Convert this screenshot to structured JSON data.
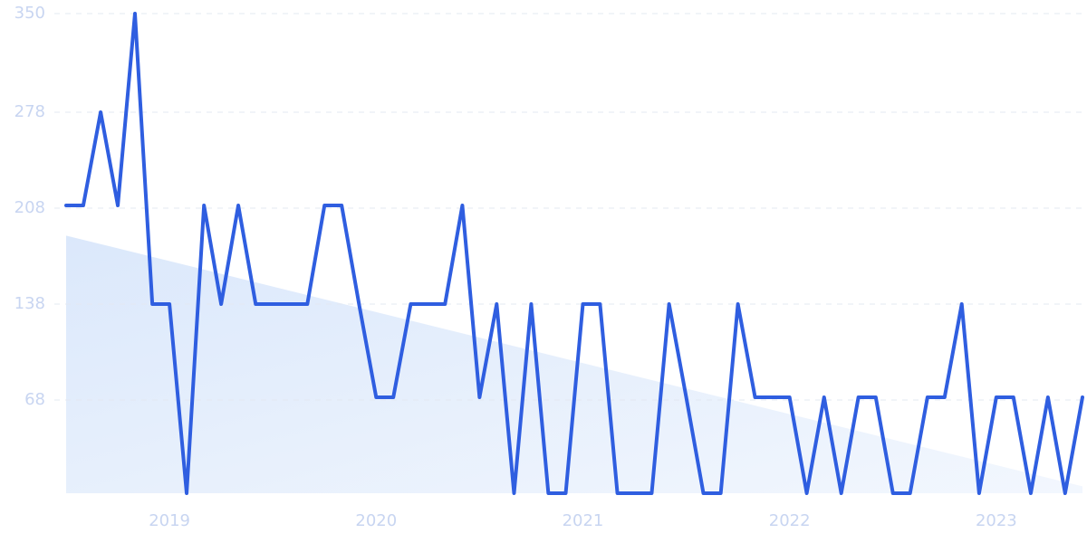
{
  "chart_data": {
    "type": "line",
    "x": [
      2018.5,
      2018.583,
      2018.667,
      2018.75,
      2018.833,
      2018.917,
      2019,
      2019.083,
      2019.167,
      2019.25,
      2019.333,
      2019.417,
      2019.5,
      2019.583,
      2019.667,
      2019.75,
      2019.833,
      2019.917,
      2020,
      2020.083,
      2020.167,
      2020.25,
      2020.333,
      2020.417,
      2020.5,
      2020.583,
      2020.667,
      2020.75,
      2020.833,
      2020.917,
      2021,
      2021.083,
      2021.167,
      2021.25,
      2021.333,
      2021.417,
      2021.5,
      2021.583,
      2021.667,
      2021.75,
      2021.833,
      2021.917,
      2022,
      2022.083,
      2022.167,
      2022.25,
      2022.333,
      2022.417,
      2022.5,
      2022.583,
      2022.667,
      2022.75,
      2022.833,
      2022.917,
      2023,
      2023.083,
      2023.167,
      2023.25,
      2023.333,
      2023.417
    ],
    "series": [
      {
        "color": "#2f5ee0",
        "values": [
          210,
          210,
          278,
          210,
          350,
          138,
          138,
          0,
          210,
          138,
          210,
          138,
          138,
          138,
          138,
          210,
          210,
          138,
          70,
          70,
          138,
          138,
          138,
          210,
          70,
          138,
          0,
          138,
          0,
          0,
          138,
          138,
          0,
          0,
          0,
          138,
          70,
          0,
          0,
          138,
          70,
          70,
          70,
          0,
          70,
          0,
          70,
          70,
          0,
          0,
          70,
          70,
          138,
          0,
          70,
          70,
          0,
          70,
          0,
          70
        ]
      }
    ],
    "trend": {
      "color": "#dbe8fb",
      "x": [
        2018.5,
        2023.417
      ],
      "values": [
        188,
        5
      ]
    },
    "xlim": [
      2018.5,
      2023.417
    ],
    "xticks": [
      2019,
      2020,
      2021,
      2022,
      2023
    ],
    "ylim": [
      0,
      350
    ],
    "yticks": [
      68,
      138,
      208,
      278,
      350
    ],
    "grid": true
  }
}
